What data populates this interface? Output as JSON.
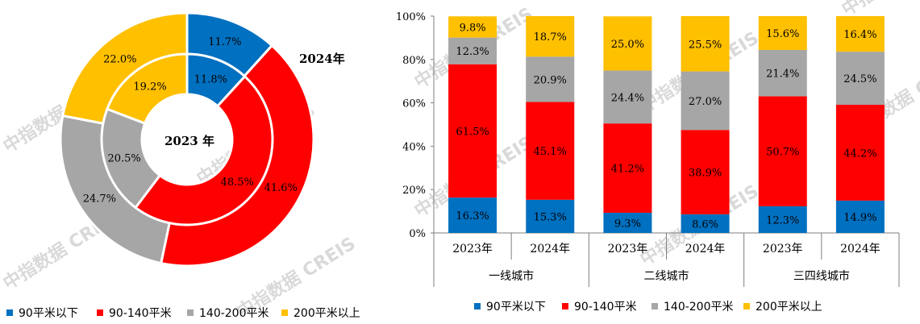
{
  "watermark_text": "中指数据 CREIS",
  "colors": {
    "s90": "#0070C0",
    "s140": "#FF0000",
    "s200": "#A6A6A6",
    "s200plus": "#FFC000"
  },
  "chart_data": [
    {
      "type": "pie",
      "variant": "double-donut",
      "rings": [
        {
          "name": "2024年",
          "position": "outer",
          "values": [
            11.7,
            41.6,
            24.7,
            22.0
          ],
          "labels": [
            "11.7%",
            "41.6%",
            "24.7%",
            "22.0%"
          ]
        },
        {
          "name": "2023 年",
          "position": "inner",
          "values": [
            11.8,
            48.5,
            20.5,
            19.2
          ],
          "labels": [
            "11.8%",
            "48.5%",
            "20.5%",
            "19.2%"
          ]
        }
      ],
      "legend": [
        "90平米以下",
        "90-140平米",
        "140-200平米",
        "200平米以上"
      ],
      "legend_position": "bottom"
    },
    {
      "type": "bar",
      "stacked": true,
      "categories": [
        "2023年",
        "2024年",
        "2023年",
        "2024年",
        "2023年",
        "2024年"
      ],
      "groups": [
        "一线城市",
        "二线城市",
        "三四线城市"
      ],
      "series": [
        {
          "name": "90平米以下",
          "values": [
            16.3,
            15.3,
            9.3,
            8.6,
            12.3,
            14.9
          ],
          "labels": [
            "16.3%",
            "15.3%",
            "9.3%",
            "8.6%",
            "12.3%",
            "14.9%"
          ]
        },
        {
          "name": "90-140平米",
          "values": [
            61.5,
            45.1,
            41.2,
            38.9,
            50.7,
            44.2
          ],
          "labels": [
            "61.5%",
            "45.1%",
            "41.2%",
            "38.9%",
            "50.7%",
            "44.2%"
          ]
        },
        {
          "name": "140-200平米",
          "values": [
            12.3,
            20.9,
            24.4,
            27.0,
            21.4,
            24.5
          ],
          "labels": [
            "12.3%",
            "20.9%",
            "24.4%",
            "27.0%",
            "21.4%",
            "24.5%"
          ]
        },
        {
          "name": "200平米以上",
          "values": [
            9.8,
            18.7,
            25.0,
            25.5,
            15.6,
            16.4
          ],
          "labels": [
            "9.8%",
            "18.7%",
            "25.0%",
            "25.5%",
            "15.6%",
            "16.4%"
          ]
        }
      ],
      "yticks": [
        "0%",
        "20%",
        "40%",
        "60%",
        "80%",
        "100%"
      ],
      "ylim": [
        0,
        100
      ],
      "grid": false,
      "legend_position": "bottom"
    }
  ]
}
